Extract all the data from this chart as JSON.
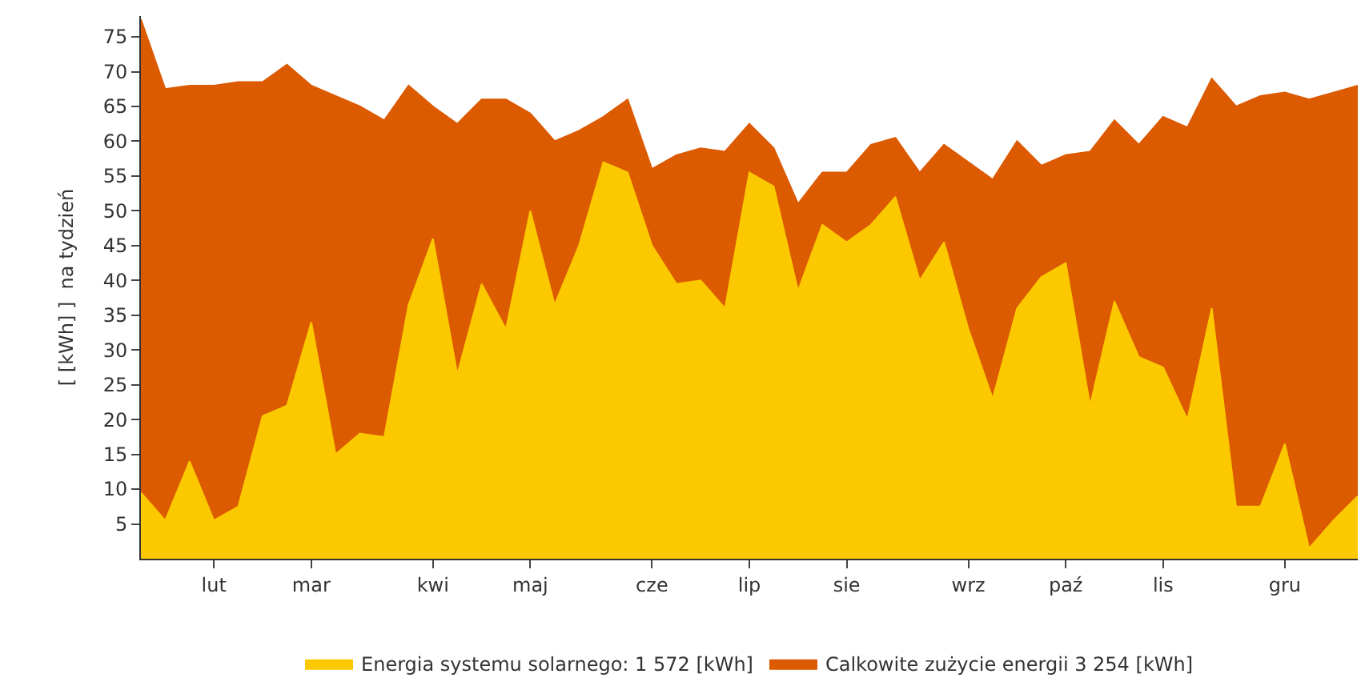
{
  "chart_data": {
    "type": "area",
    "ylabel": "[ [kWh] ]  na tydzień",
    "categories": [
      null,
      null,
      null,
      "lut",
      null,
      null,
      null,
      "mar",
      null,
      null,
      null,
      null,
      "kwi",
      null,
      null,
      null,
      "maj",
      null,
      null,
      null,
      null,
      "cze",
      null,
      null,
      null,
      "lip",
      null,
      null,
      null,
      "sie",
      null,
      null,
      null,
      null,
      "wrz",
      null,
      null,
      null,
      "paź",
      null,
      null,
      null,
      "lis",
      null,
      null,
      null,
      null,
      "gru",
      null,
      null,
      null
    ],
    "series": [
      {
        "name": "Calkowite zużycie energii 3 254 [kWh]",
        "color": "#dc5a00",
        "values": [
          77.5,
          67.5,
          68,
          68,
          68.5,
          68.5,
          71,
          68,
          66.5,
          65,
          63,
          68,
          65,
          62.5,
          66,
          66,
          64,
          60,
          61.5,
          63.5,
          66,
          56,
          58,
          59,
          58.5,
          62.5,
          59,
          51,
          55.5,
          55.5,
          59.5,
          60.5,
          55.5,
          59.5,
          57,
          54.5,
          60,
          56.5,
          58,
          58.5,
          63,
          59.5,
          63.5,
          62,
          69,
          65,
          66.5,
          67,
          66,
          67,
          68
        ]
      },
      {
        "name": "Energia systemu solarnego: 1 572 [kWh]",
        "color": "#fcc800",
        "values": [
          9.5,
          5.5,
          14,
          5.5,
          7.5,
          20.5,
          22,
          34,
          15,
          18,
          17.5,
          36.5,
          46,
          26.5,
          39.5,
          33,
          50,
          36.5,
          45,
          57,
          55.5,
          45,
          39.5,
          40,
          36,
          55.5,
          53.5,
          38.5,
          48,
          45.5,
          48,
          52,
          40,
          45.5,
          33,
          23,
          36,
          40.5,
          42.5,
          22,
          37,
          29,
          27.5,
          20,
          36,
          7.5,
          7.5,
          16.5,
          1.5,
          5.5,
          9
        ]
      }
    ],
    "ylim": [
      0,
      78
    ],
    "yticks": [
      5,
      10,
      15,
      20,
      25,
      30,
      35,
      40,
      45,
      50,
      55,
      60,
      65,
      70,
      75
    ],
    "legend": "bottom"
  }
}
